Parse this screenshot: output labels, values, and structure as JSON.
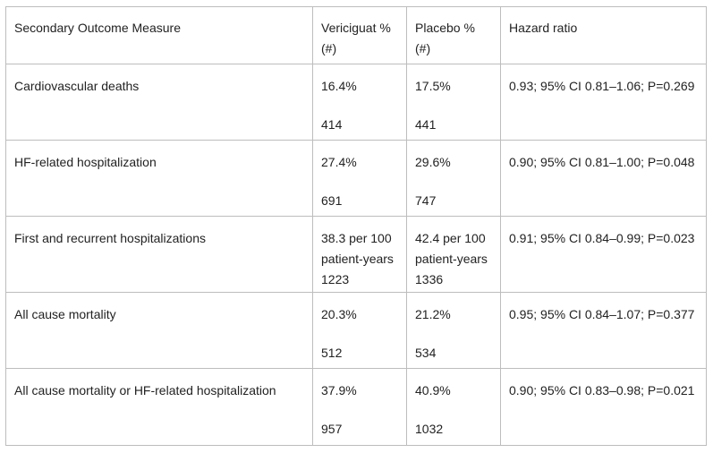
{
  "table": {
    "headers": [
      "Secondary Outcome Measure",
      [
        "Vericiguat %",
        "(#)"
      ],
      [
        "Placebo %",
        "(#)"
      ],
      "Hazard ratio"
    ],
    "rows": [
      {
        "measure": "Cardiovascular deaths",
        "vericiguat": [
          "16.4%",
          "414"
        ],
        "placebo": [
          "17.5%",
          "441"
        ],
        "hazard": "0.93; 95% CI 0.81–1.06; P=0.269"
      },
      {
        "measure": "HF-related hospitalization",
        "vericiguat": [
          "27.4%",
          "691"
        ],
        "placebo": [
          "29.6%",
          "747"
        ],
        "hazard": "0.90; 95% CI 0.81–1.00; P=0.048"
      },
      {
        "measure": "First and recurrent hospitalizations",
        "vericiguat": [
          "38.3 per 100",
          "patient-years",
          "1223"
        ],
        "placebo": [
          "42.4 per 100",
          "patient-years",
          "1336"
        ],
        "hazard": "0.91; 95% CI 0.84–0.99; P=0.023"
      },
      {
        "measure": "All cause mortality",
        "vericiguat": [
          "20.3%",
          "512"
        ],
        "placebo": [
          "21.2%",
          "534"
        ],
        "hazard": "0.95; 95% CI 0.84–1.07; P=0.377"
      },
      {
        "measure": "All cause mortality or HF-related hospitalization",
        "vericiguat": [
          "37.9%",
          "957"
        ],
        "placebo": [
          "40.9%",
          "1032"
        ],
        "hazard": "0.90; 95% CI 0.83–0.98; P=0.021"
      }
    ]
  }
}
